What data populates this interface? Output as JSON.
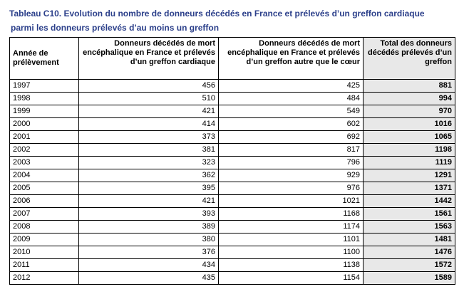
{
  "caption": {
    "line1": "Tableau C10. Evolution du nombre de donneurs décédés en France et prélevés d’un greffon cardiaque",
    "line2": "parmi les donneurs prélevés d’au moins un greffon"
  },
  "table": {
    "headers": [
      "Année de prélèvement",
      "Donneurs décédés de mort encéphalique en France et prélevés d’un greffon cardiaque",
      "Donneurs décédés de mort encéphalique en France et prélevés d’un greffon autre que le cœur",
      "Total des donneurs décédés prélevés d’un greffon"
    ],
    "rows": [
      {
        "year": "1997",
        "cardiac": "456",
        "other": "425",
        "total": "881"
      },
      {
        "year": "1998",
        "cardiac": "510",
        "other": "484",
        "total": "994"
      },
      {
        "year": "1999",
        "cardiac": "421",
        "other": "549",
        "total": "970"
      },
      {
        "year": "2000",
        "cardiac": "414",
        "other": "602",
        "total": "1016"
      },
      {
        "year": "2001",
        "cardiac": "373",
        "other": "692",
        "total": "1065"
      },
      {
        "year": "2002",
        "cardiac": "381",
        "other": "817",
        "total": "1198"
      },
      {
        "year": "2003",
        "cardiac": "323",
        "other": "796",
        "total": "1119"
      },
      {
        "year": "2004",
        "cardiac": "362",
        "other": "929",
        "total": "1291"
      },
      {
        "year": "2005",
        "cardiac": "395",
        "other": "976",
        "total": "1371"
      },
      {
        "year": "2006",
        "cardiac": "421",
        "other": "1021",
        "total": "1442"
      },
      {
        "year": "2007",
        "cardiac": "393",
        "other": "1168",
        "total": "1561"
      },
      {
        "year": "2008",
        "cardiac": "389",
        "other": "1174",
        "total": "1563"
      },
      {
        "year": "2009",
        "cardiac": "380",
        "other": "1101",
        "total": "1481"
      },
      {
        "year": "2010",
        "cardiac": "376",
        "other": "1100",
        "total": "1476"
      },
      {
        "year": "2011",
        "cardiac": "434",
        "other": "1138",
        "total": "1572"
      },
      {
        "year": "2012",
        "cardiac": "435",
        "other": "1154",
        "total": "1589"
      }
    ]
  },
  "colors": {
    "caption_text": "#2b3f8a",
    "total_column_bg": "#e8e8e8",
    "border": "#000000"
  }
}
